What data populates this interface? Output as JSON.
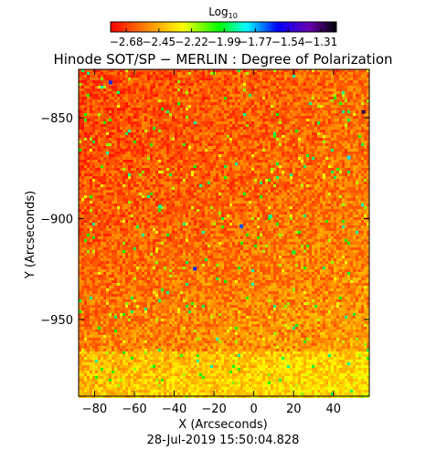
{
  "chart_data": {
    "type": "heatmap",
    "title": "Hinode SOT/SP − MERLIN : Degree of Polarization",
    "xlabel": "X (Arcseconds)",
    "ylabel": "Y (Arcseconds)",
    "timestamp": "28-Jul-2019 15:50:04.828",
    "xlim": [
      -88,
      58
    ],
    "ylim": [
      -988,
      -826
    ],
    "x_ticks": [
      -80,
      -60,
      -40,
      -20,
      0,
      20,
      40
    ],
    "x_tick_labels": [
      "−80",
      "−60",
      "−40",
      "−20",
      "0",
      "20",
      "40"
    ],
    "y_ticks": [
      -850,
      -900,
      -950
    ],
    "y_tick_labels": [
      "−850",
      "−900",
      "−950"
    ],
    "colorbar": {
      "label_base": "Log",
      "label_subscript": "10",
      "range": [
        -2.79,
        -1.2
      ],
      "colormap": "rainbow (red → yellow → green → cyan → blue → purple → black)",
      "tick_labels": [
        "−2.68",
        "−2.45",
        "−2.22",
        "−1.99",
        "−1.77",
        "−1.54",
        "−1.31"
      ],
      "tick_values": [
        -2.68,
        -2.45,
        -2.22,
        -1.99,
        -1.77,
        -1.54,
        -1.31
      ]
    },
    "field": {
      "description": "Mostly low degree of polarization (red/orange), brighter yellow toward bottom and right, scattered green/blue/black patches.",
      "typical_value": -2.6,
      "max_value": -1.3
    }
  },
  "colors": {
    "background": "#ffffff",
    "axis": "#000000",
    "colormap_stops": [
      "#ff0000",
      "#ff8000",
      "#ffff00",
      "#00ff00",
      "#00ffff",
      "#0000ff",
      "#6a00b0",
      "#000000"
    ]
  }
}
